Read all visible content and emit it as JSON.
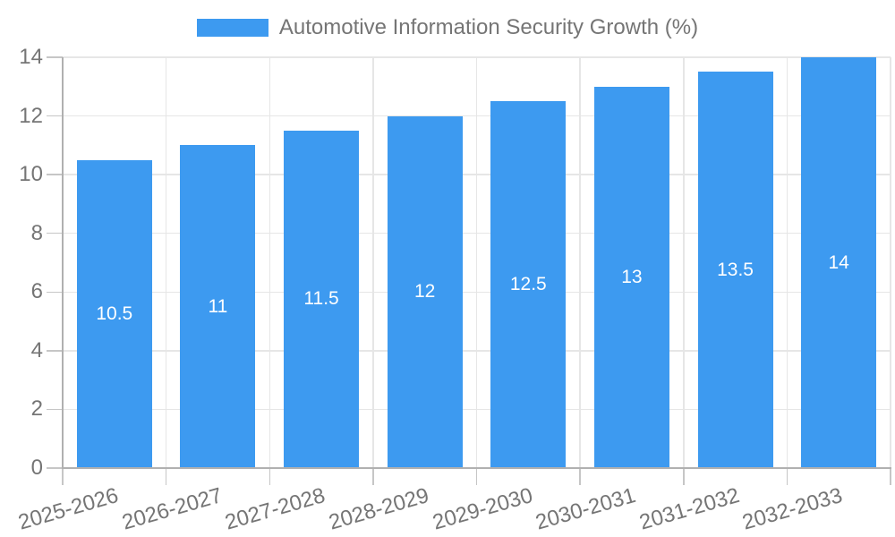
{
  "legend": {
    "label": "Automotive Information Security Growth (%)"
  },
  "chart_data": {
    "type": "bar",
    "title": "Automotive Information Security Growth (%)",
    "categories": [
      "2025-2026",
      "2026-2027",
      "2027-2028",
      "2028-2029",
      "2029-2030",
      "2030-2031",
      "2031-2032",
      "2032-2033"
    ],
    "values": [
      10.5,
      11,
      11.5,
      12,
      12.5,
      13,
      13.5,
      14
    ],
    "xlabel": "",
    "ylabel": "",
    "ylim": [
      0,
      14
    ],
    "yticks": [
      0,
      2,
      4,
      6,
      8,
      10,
      12,
      14
    ],
    "grid": true,
    "legend_position": "top",
    "bar_label_position": "center",
    "colors": {
      "bar": "#3d9af0",
      "bar_label": "#ffffff",
      "grid": "#e6e6e6",
      "axis": "#b0b0b0",
      "tick": "#c6c6c6",
      "text": "#757575",
      "background": "#ffffff"
    }
  }
}
